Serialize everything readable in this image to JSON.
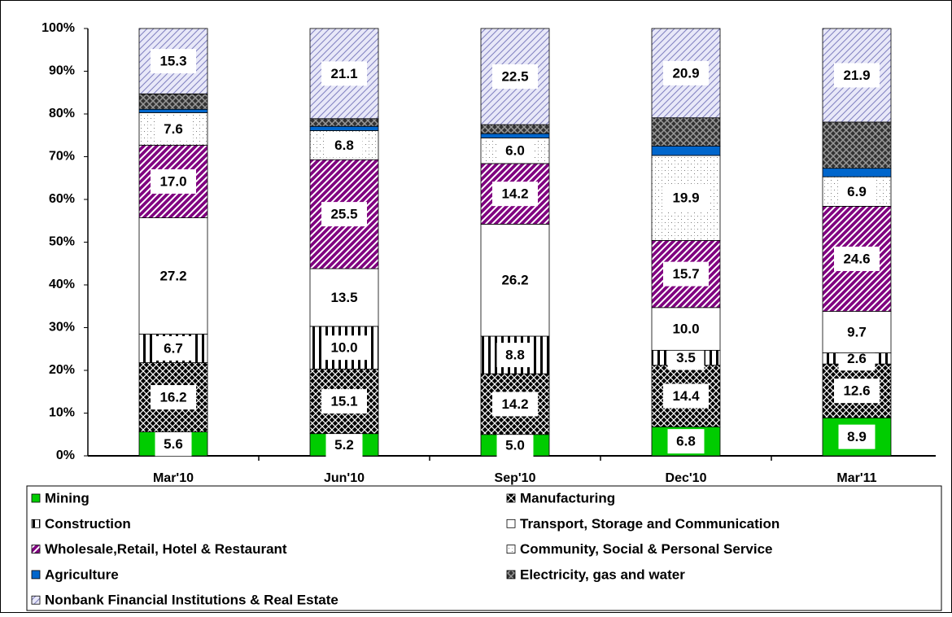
{
  "chart_data": {
    "type": "stacked-bar",
    "categories": [
      "Mar'10",
      "Jun'10",
      "Sep'10",
      "Dec'10",
      "Mar'11"
    ],
    "ylim": [
      0,
      100
    ],
    "yticks": [
      {
        "value": 0,
        "label": "0%"
      },
      {
        "value": 10,
        "label": "10%"
      },
      {
        "value": 20,
        "label": "20%"
      },
      {
        "value": 30,
        "label": "30%"
      },
      {
        "value": 40,
        "label": "40%"
      },
      {
        "value": 50,
        "label": "50%"
      },
      {
        "value": 60,
        "label": "60%"
      },
      {
        "value": 70,
        "label": "70%"
      },
      {
        "value": 80,
        "label": "80%"
      },
      {
        "value": 90,
        "label": "90%"
      },
      {
        "value": 100,
        "label": "100%"
      }
    ],
    "series": [
      {
        "name": "Mining",
        "color": "#00cc00",
        "values": [
          5.6,
          5.2,
          5.0,
          6.8,
          8.9
        ],
        "value_labels": [
          "5.6",
          "5.2",
          "5.0",
          "6.8",
          "8.9"
        ]
      },
      {
        "name": "Manufacturing",
        "color": "#000000",
        "values": [
          16.2,
          15.1,
          14.2,
          14.4,
          12.6
        ],
        "value_labels": [
          "16.2",
          "15.1",
          "14.2",
          "14.4",
          "12.6"
        ]
      },
      {
        "name": "Construction",
        "color": "#ffffff",
        "values": [
          6.7,
          10.0,
          8.8,
          3.5,
          2.6
        ],
        "value_labels": [
          "6.7",
          "10.0",
          "8.8",
          "3.5",
          "2.6"
        ]
      },
      {
        "name": "Transport, Storage and Communication",
        "color": "#ffffff",
        "values": [
          27.2,
          13.5,
          26.2,
          10.0,
          9.7
        ],
        "value_labels": [
          "27.2",
          "13.5",
          "26.2",
          "10.0",
          "9.7"
        ]
      },
      {
        "name": "Wholesale,Retail, Hotel & Restaurant",
        "color": "#800080",
        "values": [
          17.0,
          25.5,
          14.2,
          15.7,
          24.6
        ],
        "value_labels": [
          "17.0",
          "25.5",
          "14.2",
          "15.7",
          "24.6"
        ]
      },
      {
        "name": "Community, Social & Personal Service",
        "color": "#ffffff",
        "values": [
          7.6,
          6.8,
          6.0,
          19.9,
          6.9
        ],
        "value_labels": [
          "7.6",
          "6.8",
          "6.0",
          "19.9",
          "6.9"
        ]
      },
      {
        "name": "Agriculture",
        "color": "#0066cc",
        "values": [
          0.8,
          1.0,
          1.0,
          2.2,
          2.0
        ]
      },
      {
        "name": "Electricity, gas and water",
        "color": "#333333",
        "values": [
          3.6,
          1.8,
          2.1,
          6.6,
          10.8
        ]
      },
      {
        "name": "Nonbank Financial Institutions & Real Estate",
        "color": "#e8e8f8",
        "values": [
          15.3,
          21.1,
          22.5,
          20.9,
          21.9
        ],
        "value_labels": [
          "15.3",
          "21.1",
          "22.5",
          "20.9",
          "21.9"
        ]
      }
    ]
  }
}
